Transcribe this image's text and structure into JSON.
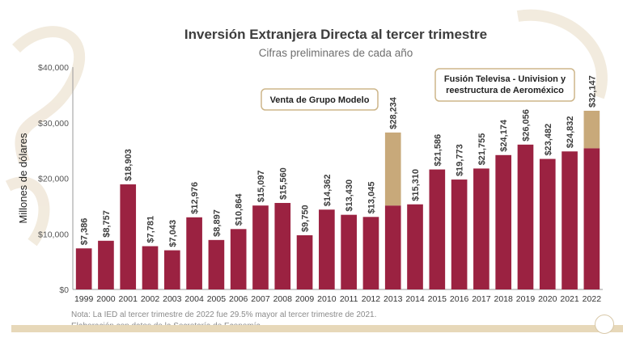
{
  "title": "Inversión Extranjera Directa al tercer trimestre",
  "subtitle": "Cifras preliminares de cada año",
  "notes": {
    "line1": "Nota: La IED al tercer trimestre de 2022 fue 29.5% mayor al tercer trimestre de 2021.",
    "line2": "Elaboración con datos de la Secretaría de Economía."
  },
  "colors": {
    "bar": "#9b2241",
    "highlight": "#c8a97a",
    "text": "#3d3d3d",
    "callout_border": "#cdb68a"
  },
  "chart_data": {
    "type": "bar",
    "title": "Inversión Extranjera Directa al tercer trimestre",
    "subtitle": "Cifras preliminares de cada año",
    "xlabel": "",
    "ylabel": "Millones de dólares",
    "ylim": [
      0,
      40000
    ],
    "yticks": [
      0,
      10000,
      20000,
      30000,
      40000
    ],
    "ytick_labels": [
      "$0",
      "$10,000",
      "$20,000",
      "$30,000",
      "$40,000"
    ],
    "grid": false,
    "categories": [
      "1999",
      "2000",
      "2001",
      "2002",
      "2003",
      "2004",
      "2005",
      "2006",
      "2007",
      "2008",
      "2009",
      "2010",
      "2011",
      "2012",
      "2013",
      "2014",
      "2015",
      "2016",
      "2017",
      "2018",
      "2019",
      "2020",
      "2021",
      "2022"
    ],
    "values": [
      7386,
      8757,
      18903,
      7781,
      7043,
      12976,
      8897,
      10864,
      15097,
      15560,
      9750,
      14362,
      13430,
      13045,
      28234,
      15310,
      21586,
      19773,
      21755,
      24174,
      26056,
      23482,
      24832,
      32147
    ],
    "value_labels": [
      "$7,386",
      "$8,757",
      "$18,903",
      "$7,781",
      "$7,043",
      "$12,976",
      "$8,897",
      "$10,864",
      "$15,097",
      "$15,560",
      "$9,750",
      "$14,362",
      "$13,430",
      "$13,045",
      "$28,234",
      "$15,310",
      "$21,586",
      "$19,773",
      "$21,755",
      "$24,174",
      "$26,056",
      "$23,482",
      "$24,832",
      "$32,147"
    ],
    "highlight_segments": [
      {
        "category": "2013",
        "base": 15100,
        "top": 28234
      },
      {
        "category": "2022",
        "base": 25400,
        "top": 32147
      }
    ],
    "annotations": [
      {
        "text": "Venta de Grupo Modelo",
        "category": "2013"
      },
      {
        "text": "Fusión Televisa - Univision y reestructura de Aeroméxico",
        "category": "2022"
      }
    ]
  }
}
